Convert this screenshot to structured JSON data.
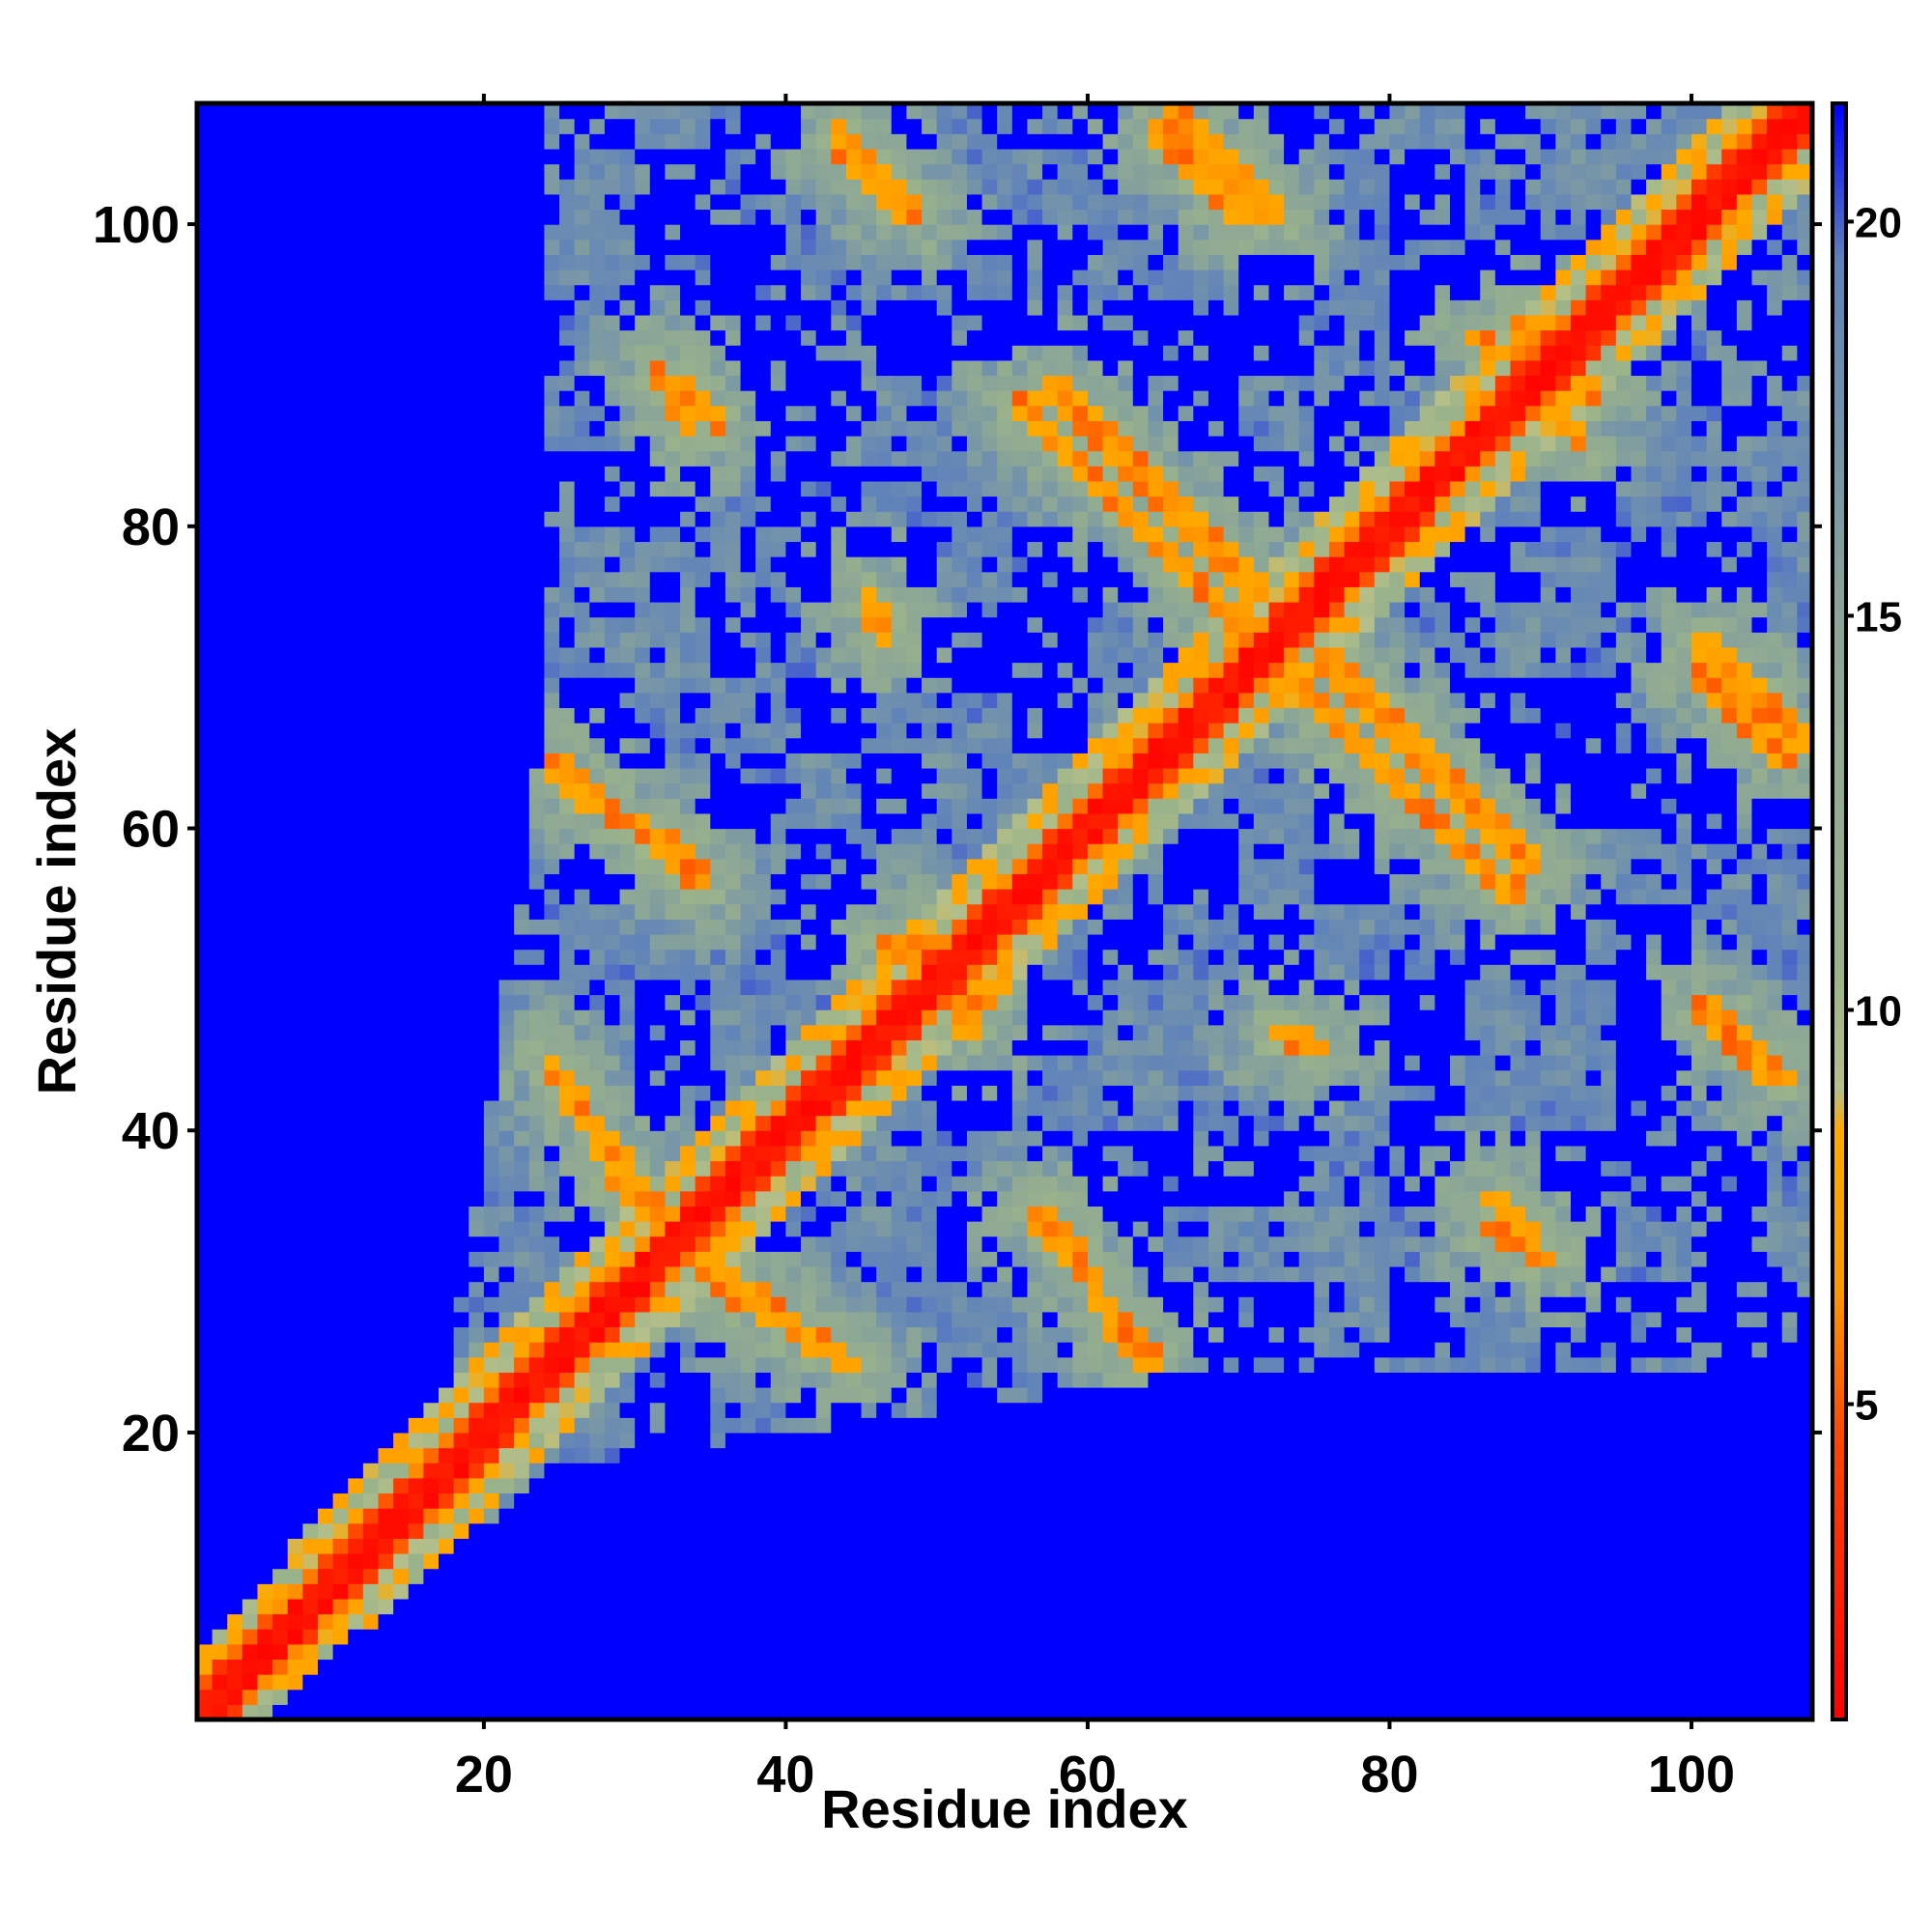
{
  "chart_data": {
    "type": "heatmap",
    "title": "",
    "xlabel": "Residue index",
    "ylabel": "Residue index",
    "x_range": [
      1,
      107
    ],
    "y_range": [
      1,
      107
    ],
    "x_ticks": [
      20,
      40,
      60,
      80,
      100
    ],
    "y_ticks": [
      20,
      40,
      60,
      80,
      100
    ],
    "x_tick_labels": [
      "20",
      "40",
      "60",
      "80",
      "100"
    ],
    "y_tick_labels": [
      "20",
      "40",
      "60",
      "80",
      "100"
    ],
    "colorbar": {
      "range": [
        1,
        21.5
      ],
      "ticks": [
        5,
        10,
        15,
        20
      ],
      "tick_labels": [
        "5",
        "10",
        "15",
        "20"
      ],
      "stops": [
        {
          "value": 1,
          "color": "#ff0000"
        },
        {
          "value": 4.5,
          "color": "#ff4400"
        },
        {
          "value": 6.5,
          "color": "#ff9900"
        },
        {
          "value": 8.5,
          "color": "#ffaa00"
        },
        {
          "value": 9.0,
          "color": "#b5bf8a"
        },
        {
          "value": 10.5,
          "color": "#9bb38a"
        },
        {
          "value": 15,
          "color": "#8aa598"
        },
        {
          "value": 19.5,
          "color": "#5f82bb"
        },
        {
          "value": 21.5,
          "color": "#0000ff"
        }
      ]
    },
    "value_description": "Pairwise residue distance matrix (symmetric); diagonal ~1-4, background 21.5",
    "background_value": 21.5,
    "n_residues": 107,
    "secondary_contacts": [
      {
        "from": [
          5,
          5
        ],
        "to": [
          22,
          22
        ],
        "kind": "diagonal-band"
      },
      {
        "from": [
          25,
          42
        ],
        "to": [
          32,
          33
        ],
        "kind": "antiparallel"
      },
      {
        "from": [
          34,
          30
        ],
        "to": [
          44,
          24
        ],
        "kind": "antiparallel"
      },
      {
        "from": [
          56,
          34
        ],
        "to": [
          64,
          24
        ],
        "kind": "antiparallel"
      },
      {
        "from": [
          24,
          63
        ],
        "to": [
          34,
          57
        ],
        "kind": "antiparallel"
      },
      {
        "from": [
          33,
          89
        ],
        "to": [
          35,
          86
        ],
        "kind": "short"
      },
      {
        "from": [
          43,
          105
        ],
        "to": [
          48,
          100
        ],
        "kind": "antiparallel"
      },
      {
        "from": [
          57,
          89
        ],
        "to": [
          71,
          75
        ],
        "kind": "antiparallel"
      },
      {
        "from": [
          65,
          107
        ],
        "to": [
          72,
          100
        ],
        "kind": "antiparallel"
      },
      {
        "from": [
          72,
          70
        ],
        "to": [
          88,
          55
        ],
        "kind": "antiparallel"
      },
      {
        "from": [
          100,
          70
        ],
        "to": [
          106,
          64
        ],
        "kind": "antiparallel"
      },
      {
        "from": [
          100,
          48
        ],
        "to": [
          106,
          43
        ],
        "kind": "antiparallel"
      },
      {
        "from": [
          86,
          33
        ],
        "to": [
          90,
          31
        ],
        "kind": "short"
      },
      {
        "from": [
          85,
          92
        ],
        "to": [
          93,
          88
        ],
        "kind": "short"
      },
      {
        "from": [
          72,
          46
        ],
        "to": [
          75,
          45
        ],
        "kind": "short"
      },
      {
        "from": [
          46,
          52
        ],
        "to": [
          53,
          48
        ],
        "kind": "short"
      }
    ]
  }
}
